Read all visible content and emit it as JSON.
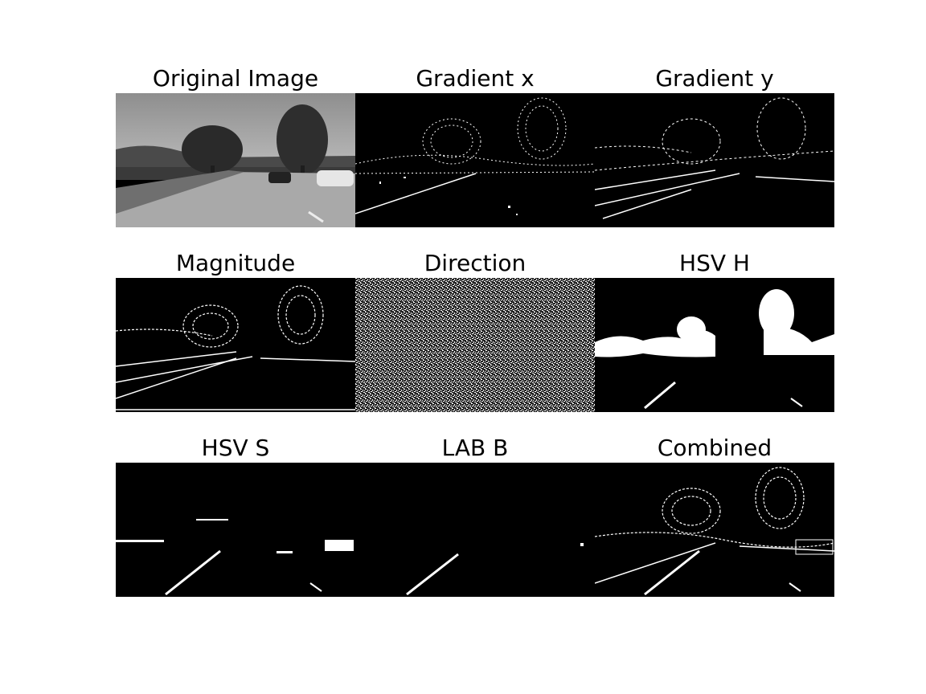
{
  "figure": {
    "background": "#ffffff",
    "panel_background": "#000000",
    "panels": [
      {
        "title": "Original Image"
      },
      {
        "title": "Gradient x"
      },
      {
        "title": "Gradient y"
      },
      {
        "title": "Magnitude"
      },
      {
        "title": "Direction"
      },
      {
        "title": "HSV H"
      },
      {
        "title": "HSV S"
      },
      {
        "title": "LAB B"
      },
      {
        "title": "Combined"
      }
    ]
  }
}
